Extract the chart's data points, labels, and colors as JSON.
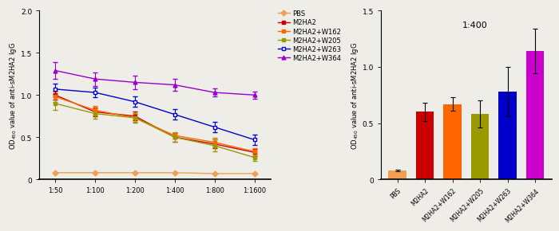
{
  "line_x_labels": [
    "1:50",
    "1:100",
    "1:200",
    "1:400",
    "1:800",
    "1:1600"
  ],
  "line_x": [
    0,
    1,
    2,
    3,
    4,
    5
  ],
  "line_series": {
    "PBS": {
      "color": "#F0A050",
      "marker": "D",
      "marker_face": "#F0A050",
      "values": [
        0.08,
        0.08,
        0.08,
        0.08,
        0.07,
        0.07
      ],
      "errors": [
        0.005,
        0.005,
        0.005,
        0.005,
        0.005,
        0.005
      ]
    },
    "M2HA2": {
      "color": "#CC0000",
      "marker": "s",
      "marker_face": "#CC0000",
      "values": [
        1.0,
        0.8,
        0.75,
        0.5,
        0.42,
        0.32
      ],
      "errors": [
        0.05,
        0.05,
        0.05,
        0.05,
        0.05,
        0.04
      ]
    },
    "M2HA2+W162": {
      "color": "#FF6600",
      "marker": "s",
      "marker_face": "#FF6600",
      "values": [
        0.98,
        0.82,
        0.73,
        0.52,
        0.44,
        0.33
      ],
      "errors": [
        0.06,
        0.05,
        0.05,
        0.04,
        0.05,
        0.04
      ]
    },
    "M2HA2+W205": {
      "color": "#999900",
      "marker": "s",
      "marker_face": "#999900",
      "values": [
        0.9,
        0.78,
        0.73,
        0.5,
        0.4,
        0.26
      ],
      "errors": [
        0.08,
        0.06,
        0.06,
        0.05,
        0.07,
        0.04
      ]
    },
    "M2HA2+W263": {
      "color": "#0000CC",
      "marker": "s",
      "marker_face": "white",
      "values": [
        1.07,
        1.03,
        0.92,
        0.77,
        0.62,
        0.47
      ],
      "errors": [
        0.06,
        0.06,
        0.06,
        0.06,
        0.06,
        0.06
      ]
    },
    "M2HA2+W364": {
      "color": "#9900CC",
      "marker": "^",
      "marker_face": "#9900CC",
      "values": [
        1.29,
        1.19,
        1.15,
        1.12,
        1.03,
        1.0
      ],
      "errors": [
        0.1,
        0.08,
        0.08,
        0.07,
        0.05,
        0.04
      ]
    }
  },
  "bar_categories": [
    "PBS",
    "M2HA2",
    "M2HA2+W162",
    "M2HA2+W205",
    "M2HA2+W263",
    "M2HA2+W364"
  ],
  "bar_values": [
    0.08,
    0.6,
    0.67,
    0.58,
    0.78,
    1.14
  ],
  "bar_errors": [
    0.01,
    0.08,
    0.06,
    0.12,
    0.22,
    0.2
  ],
  "bar_colors": [
    "#F0A050",
    "#CC0000",
    "#FF6600",
    "#999900",
    "#0000CC",
    "#CC00CC"
  ],
  "bar_title": "1:400",
  "ylim_line": [
    0.0,
    2.0
  ],
  "ylim_bar": [
    0.0,
    1.5
  ],
  "ylabel": "OD$_{450}$ value of anti-sM2HA2 IgG",
  "line_yticks": [
    0.0,
    0.5,
    1.0,
    1.5,
    2.0
  ],
  "bar_yticks": [
    0.0,
    0.5,
    1.0,
    1.5
  ],
  "legend_order": [
    "PBS",
    "M2HA2",
    "M2HA2+W162",
    "M2HA2+W205",
    "M2HA2+W263",
    "M2HA2+W364"
  ],
  "bg_color": "#eeede8"
}
